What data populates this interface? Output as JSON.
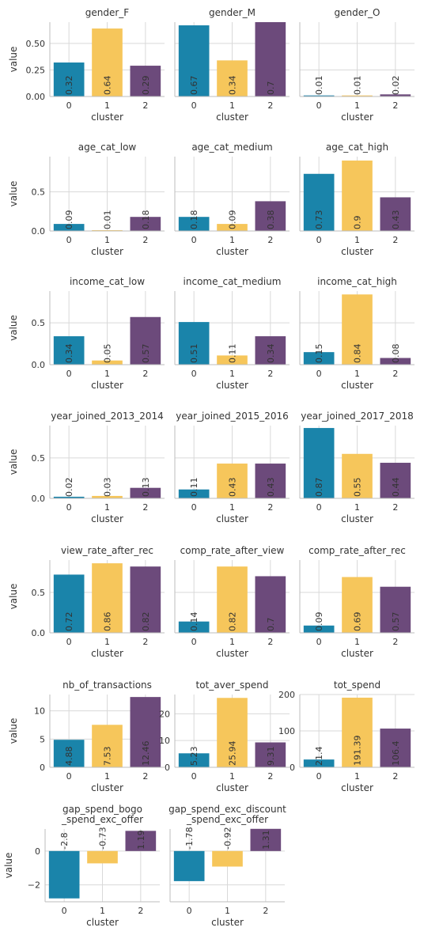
{
  "colors": {
    "c0": "#1a84aa",
    "c1": "#f6c65b",
    "c2": "#6c4a7b",
    "grid": "#d9d9d9",
    "axis": "#bdbdbd",
    "text": "#333333"
  },
  "common": {
    "xlabel": "cluster",
    "ylabel": "value",
    "categories": [
      "0",
      "1",
      "2"
    ]
  },
  "chart_data": [
    {
      "type": "bar",
      "title": "gender_F",
      "values": [
        0.32,
        0.64,
        0.29
      ],
      "labels": [
        "0.32",
        "0.64",
        "0.29"
      ],
      "yticks": [
        "0.00",
        "0.25",
        "0.50"
      ],
      "ytick_values": [
        0,
        0.25,
        0.5
      ],
      "ylim": [
        0,
        0.7
      ]
    },
    {
      "type": "bar",
      "title": "gender_M",
      "values": [
        0.67,
        0.34,
        0.7
      ],
      "labels": [
        "0.67",
        "0.34",
        "0.7"
      ],
      "yticks": [],
      "ytick_values": [
        0,
        0.25,
        0.5
      ],
      "ylim": [
        0,
        0.7
      ]
    },
    {
      "type": "bar",
      "title": "gender_O",
      "values": [
        0.01,
        0.01,
        0.02
      ],
      "labels": [
        "0.01",
        "0.01",
        "0.02"
      ],
      "yticks": [],
      "ytick_values": [
        0,
        0.25,
        0.5
      ],
      "ylim": [
        0,
        0.7
      ]
    },
    {
      "type": "bar",
      "title": "age_cat_low",
      "values": [
        0.09,
        0.01,
        0.18
      ],
      "labels": [
        "0.09",
        "0.01",
        "0.18"
      ],
      "yticks": [
        "0.0",
        "0.5"
      ],
      "ytick_values": [
        0,
        0.5
      ],
      "ylim": [
        0,
        0.95
      ]
    },
    {
      "type": "bar",
      "title": "age_cat_medium",
      "values": [
        0.18,
        0.09,
        0.38
      ],
      "labels": [
        "0.18",
        "0.09",
        "0.38"
      ],
      "yticks": [],
      "ytick_values": [
        0,
        0.5
      ],
      "ylim": [
        0,
        0.95
      ]
    },
    {
      "type": "bar",
      "title": "age_cat_high",
      "values": [
        0.73,
        0.9,
        0.43
      ],
      "labels": [
        "0.73",
        "0.9",
        "0.43"
      ],
      "yticks": [],
      "ytick_values": [
        0,
        0.5
      ],
      "ylim": [
        0,
        0.95
      ]
    },
    {
      "type": "bar",
      "title": "income_cat_low",
      "values": [
        0.34,
        0.05,
        0.57
      ],
      "labels": [
        "0.34",
        "0.05",
        "0.57"
      ],
      "yticks": [
        "0.0",
        "0.5"
      ],
      "ytick_values": [
        0,
        0.5
      ],
      "ylim": [
        0,
        0.88
      ]
    },
    {
      "type": "bar",
      "title": "income_cat_medium",
      "values": [
        0.51,
        0.11,
        0.34
      ],
      "labels": [
        "0.51",
        "0.11",
        "0.34"
      ],
      "yticks": [],
      "ytick_values": [
        0,
        0.5
      ],
      "ylim": [
        0,
        0.88
      ]
    },
    {
      "type": "bar",
      "title": "income_cat_high",
      "values": [
        0.15,
        0.84,
        0.08
      ],
      "labels": [
        "0.15",
        "0.84",
        "0.08"
      ],
      "yticks": [],
      "ytick_values": [
        0,
        0.5
      ],
      "ylim": [
        0,
        0.88
      ]
    },
    {
      "type": "bar",
      "title": "year_joined_2013_2014",
      "values": [
        0.02,
        0.03,
        0.13
      ],
      "labels": [
        "0.02",
        "0.03",
        "0.13"
      ],
      "yticks": [
        "0.0",
        "0.5"
      ],
      "ytick_values": [
        0,
        0.5
      ],
      "ylim": [
        0,
        0.9
      ]
    },
    {
      "type": "bar",
      "title": "year_joined_2015_2016",
      "values": [
        0.11,
        0.43,
        0.43
      ],
      "labels": [
        "0.11",
        "0.43",
        "0.43"
      ],
      "yticks": [],
      "ytick_values": [
        0,
        0.5
      ],
      "ylim": [
        0,
        0.9
      ]
    },
    {
      "type": "bar",
      "title": "year_joined_2017_2018",
      "values": [
        0.87,
        0.55,
        0.44
      ],
      "labels": [
        "0.87",
        "0.55",
        "0.44"
      ],
      "yticks": [],
      "ytick_values": [
        0,
        0.5
      ],
      "ylim": [
        0,
        0.9
      ]
    },
    {
      "type": "bar",
      "title": "view_rate_after_rec",
      "values": [
        0.72,
        0.86,
        0.82
      ],
      "labels": [
        "0.72",
        "0.86",
        "0.82"
      ],
      "yticks": [
        "0.0",
        "0.5"
      ],
      "ytick_values": [
        0,
        0.5
      ],
      "ylim": [
        0,
        0.9
      ]
    },
    {
      "type": "bar",
      "title": "comp_rate_after_view",
      "values": [
        0.14,
        0.82,
        0.7
      ],
      "labels": [
        "0.14",
        "0.82",
        "0.7"
      ],
      "yticks": [],
      "ytick_values": [
        0,
        0.5
      ],
      "ylim": [
        0,
        0.9
      ]
    },
    {
      "type": "bar",
      "title": "comp_rate_after_rec",
      "values": [
        0.09,
        0.69,
        0.57
      ],
      "labels": [
        "0.09",
        "0.69",
        "0.57"
      ],
      "yticks": [],
      "ytick_values": [
        0,
        0.5
      ],
      "ylim": [
        0,
        0.9
      ]
    },
    {
      "type": "bar",
      "title": "nb_of_transactions",
      "values": [
        4.88,
        7.53,
        12.46
      ],
      "labels": [
        "4.88",
        "7.53",
        "12.46"
      ],
      "yticks": [
        "0",
        "5",
        "10"
      ],
      "ytick_values": [
        0,
        5,
        10
      ],
      "ylim": [
        0,
        12.9
      ]
    },
    {
      "type": "bar",
      "title": "tot_aver_spend",
      "values": [
        5.23,
        25.94,
        9.31
      ],
      "labels": [
        "5.23",
        "25.94",
        "9.31"
      ],
      "yticks": [
        "0",
        "10",
        "20"
      ],
      "ytick_values": [
        0,
        10,
        20
      ],
      "ylim": [
        0,
        27.2
      ]
    },
    {
      "type": "bar",
      "title": "tot_spend",
      "values": [
        21.4,
        191.39,
        106.4
      ],
      "labels": [
        "21.4",
        "191.39",
        "106.4"
      ],
      "yticks": [
        "0",
        "100",
        "200"
      ],
      "ytick_values": [
        0,
        100,
        200
      ],
      "ylim": [
        0,
        200
      ]
    },
    {
      "type": "bar",
      "title": "gap_spend_bogo\n_spend_exc_offer",
      "values": [
        -2.8,
        -0.73,
        1.19
      ],
      "labels": [
        "-2.8",
        "-0.73",
        "1.19"
      ],
      "yticks": [
        "−2",
        "0"
      ],
      "ytick_values": [
        -2,
        0
      ],
      "ylim": [
        -3.0,
        1.3
      ]
    },
    {
      "type": "bar",
      "title": "gap_spend_exc_discount\n_spend_exc_offer",
      "values": [
        -1.78,
        -0.92,
        1.31
      ],
      "labels": [
        "-1.78",
        "-0.92",
        "1.31"
      ],
      "yticks": [],
      "ytick_values": [
        -2,
        0
      ],
      "ylim": [
        -3.0,
        1.3
      ]
    }
  ]
}
